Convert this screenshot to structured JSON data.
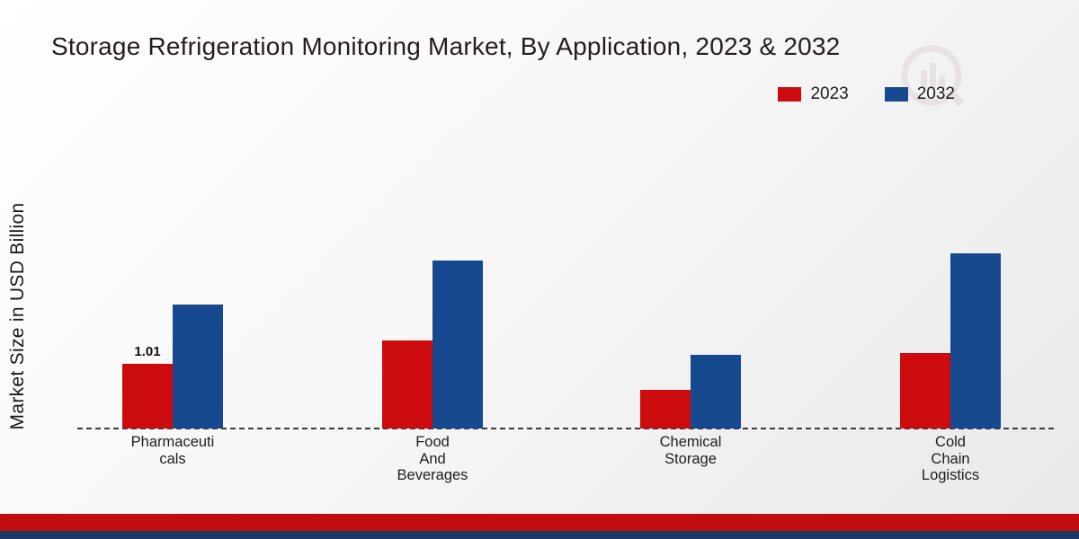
{
  "title": "Storage Refrigeration Monitoring Market, By Application, 2023 & 2032",
  "ylabel": "Market Size in USD Billion",
  "legend": [
    {
      "label": "2023",
      "color": "#cb0b0d"
    },
    {
      "label": "2032",
      "color": "#17498f"
    }
  ],
  "footer": {
    "red_strip_color": "#c00d0d",
    "navy_strip_color": "#1b3a66"
  },
  "chart_data": {
    "type": "bar",
    "title": "Storage Refrigeration Monitoring Market, By Application, 2023 & 2032",
    "xlabel": "",
    "ylabel": "Market Size in USD Billion",
    "ylim": [
      0,
      3.2
    ],
    "grid": false,
    "legend_position": "top-right",
    "baseline_style": "dashed",
    "categories": [
      "Pharmaceuticals",
      "Food And Beverages",
      "Chemical Storage",
      "Cold Chain Logistics"
    ],
    "category_lines": [
      [
        "Pharmaceuti",
        "cals"
      ],
      [
        "Food",
        "And",
        "Beverages"
      ],
      [
        "Chemical",
        "Storage"
      ],
      [
        "Cold",
        "Chain",
        "Logistics"
      ]
    ],
    "series": [
      {
        "name": "2023",
        "color": "#cb0b0d",
        "values": [
          1.01,
          1.38,
          0.6,
          1.18
        ]
      },
      {
        "name": "2032",
        "color": "#17498f",
        "values": [
          1.95,
          2.64,
          1.15,
          2.75
        ]
      }
    ],
    "annotations": [
      {
        "series": "2023",
        "category": "Pharmaceuticals",
        "text": "1.01"
      }
    ]
  }
}
